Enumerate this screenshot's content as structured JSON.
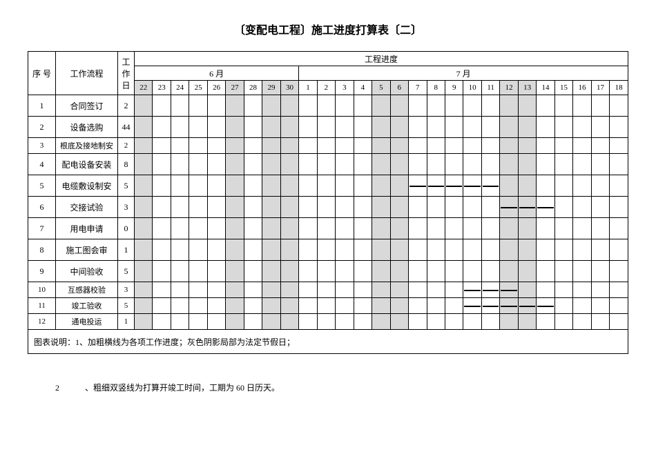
{
  "title": "〔变配电工程〕施工进度打算表〔二〕",
  "headers": {
    "seq": "序 号",
    "task": "工作流程",
    "days": "工作日",
    "progress": "工程进度",
    "month6": "6 月",
    "month7": "7 月"
  },
  "dates": [
    "22",
    "23",
    "24",
    "25",
    "26",
    "27",
    "28",
    "29",
    "30",
    "1",
    "2",
    "3",
    "4",
    "5",
    "6",
    "7",
    "8",
    "9",
    "10",
    "11",
    "12",
    "13",
    "14",
    "15",
    "16",
    "17",
    "18"
  ],
  "weekend_cols": [
    0,
    5,
    7,
    8,
    13,
    14,
    20,
    21
  ],
  "rows": [
    {
      "seq": "1",
      "task": "合同签订",
      "days": "2",
      "bars": []
    },
    {
      "seq": "2",
      "task": "设备选购",
      "days": "44",
      "bars": []
    },
    {
      "seq": "3",
      "task": "根底及接地制安",
      "days": "2",
      "bars": [],
      "small": true
    },
    {
      "seq": "4",
      "task": "配电设备安装",
      "days": "8",
      "bars": []
    },
    {
      "seq": "5",
      "task": "电缆敷设制安",
      "days": "5",
      "bars": [
        [
          15,
          19
        ]
      ]
    },
    {
      "seq": "6",
      "task": "交接试验",
      "days": "3",
      "bars": [
        [
          20,
          22
        ]
      ]
    },
    {
      "seq": "7",
      "task": "用电申请",
      "days": "0",
      "bars": []
    },
    {
      "seq": "8",
      "task": "施工图会审",
      "days": "1",
      "bars": []
    },
    {
      "seq": "9",
      "task": "中间验收",
      "days": "5",
      "bars": []
    },
    {
      "seq": "10",
      "task": "互感器校验",
      "days": "3",
      "bars": [
        [
          18,
          20
        ]
      ],
      "small": true
    },
    {
      "seq": "11",
      "task": "竣工验收",
      "days": "5",
      "bars": [
        [
          18,
          22
        ]
      ],
      "small": true
    },
    {
      "seq": "12",
      "task": "通电投运",
      "days": "1",
      "bars": [],
      "small": true
    }
  ],
  "note": "图表说明：1、加粗横线为各项工作进度；灰色阴影局部为法定节假日；",
  "footer": {
    "num": "2",
    "text": "、粗细双竖线为打算开竣工时间，工期为  60  日历天。"
  }
}
